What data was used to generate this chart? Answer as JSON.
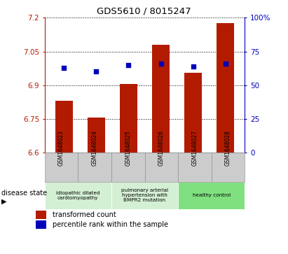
{
  "title": "GDS5610 / 8015247",
  "samples": [
    "GSM1648023",
    "GSM1648024",
    "GSM1648025",
    "GSM1648026",
    "GSM1648027",
    "GSM1648028"
  ],
  "transformed_count": [
    6.83,
    6.755,
    6.905,
    7.08,
    6.955,
    7.175
  ],
  "percentile_rank": [
    63,
    60,
    65,
    66,
    64,
    66
  ],
  "ylim_left": [
    6.6,
    7.2
  ],
  "ylim_right": [
    0,
    100
  ],
  "yticks_left": [
    6.6,
    6.75,
    6.9,
    7.05,
    7.2
  ],
  "ytick_labels_left": [
    "6.6",
    "6.75",
    "6.9",
    "7.05",
    "7.2"
  ],
  "yticks_right": [
    0,
    25,
    50,
    75,
    100
  ],
  "ytick_labels_right": [
    "0",
    "25",
    "50",
    "75",
    "100%"
  ],
  "bar_color": "#b31b00",
  "dot_color": "#0000bb",
  "bar_bottom": 6.6,
  "disease_groups": [
    {
      "label": "idiopathic dilated\ncardiomyopathy",
      "start": 0,
      "end": 2,
      "color": "#d4f0d4"
    },
    {
      "label": "pulmonary arterial\nhypertension with\nBMPR2 mutation",
      "start": 2,
      "end": 4,
      "color": "#d4f0d4"
    },
    {
      "label": "healthy control",
      "start": 4,
      "end": 6,
      "color": "#80e080"
    }
  ],
  "legend_bar_label": "transformed count",
  "legend_dot_label": "percentile rank within the sample",
  "disease_state_label": "disease state",
  "grid_color": "#000000",
  "tick_label_gray_bg": "#cccccc",
  "tick_label_gray_border": "#888888"
}
